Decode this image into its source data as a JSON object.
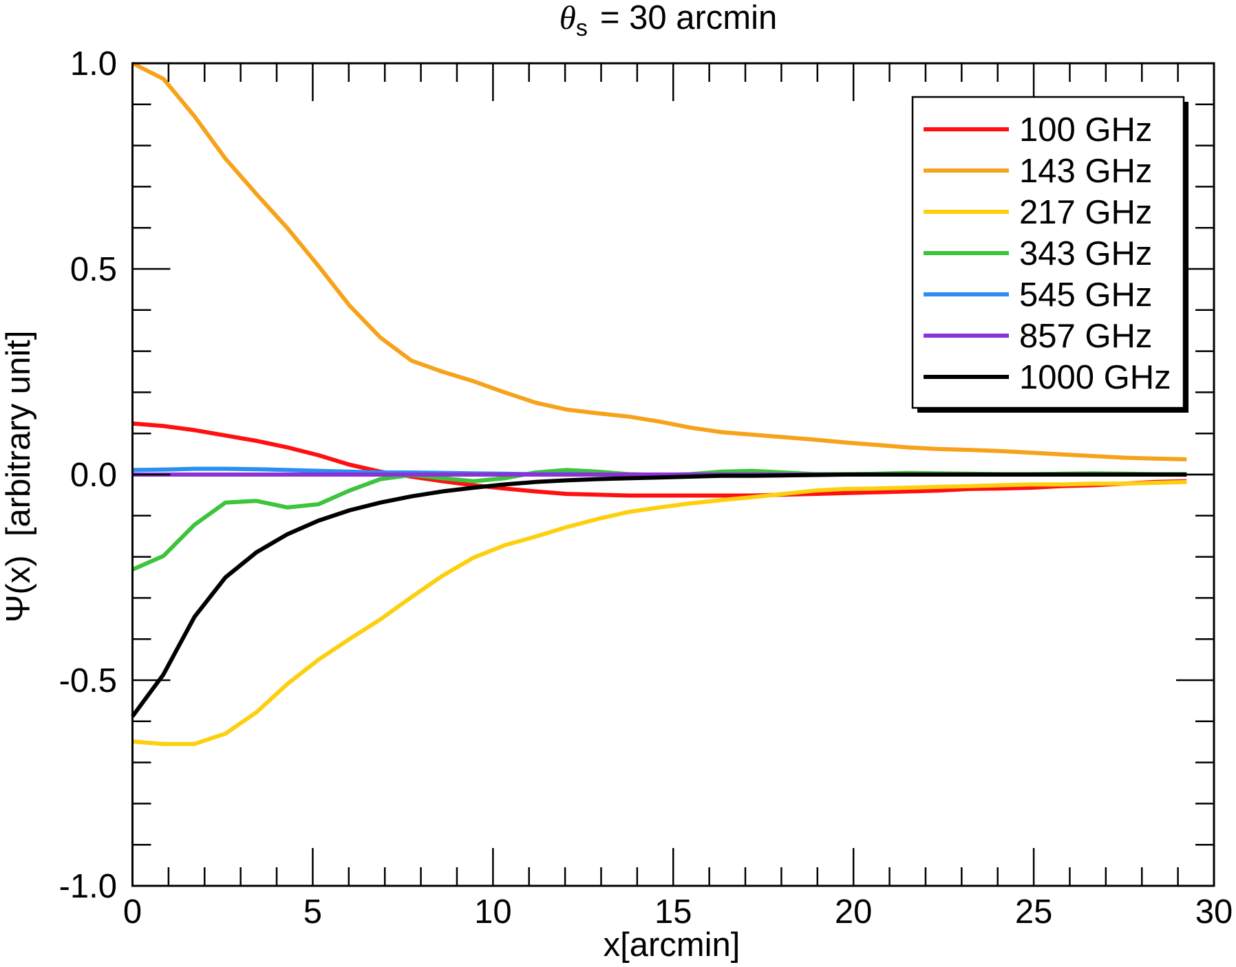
{
  "chart_data": {
    "type": "line",
    "title": {
      "symbol": "θ",
      "subscript": "s",
      "rest": "= 30 arcmin"
    },
    "xlabel": "x[arcmin]",
    "ylabel": "Ψ(x)  [arbitrary unit]",
    "xlim": [
      0,
      30
    ],
    "ylim": [
      -1.0,
      1.0
    ],
    "xticks": [
      0,
      5,
      10,
      15,
      20,
      25,
      30
    ],
    "xtick_labels": [
      "0",
      "5",
      "10",
      "15",
      "20",
      "25",
      "30"
    ],
    "x_minor_step": 1,
    "yticks": [
      1.0,
      0.5,
      0.0,
      -0.5,
      -1.0
    ],
    "ytick_labels": [
      "1.0",
      "0.5",
      "0.0",
      "-0.5",
      "-1.0"
    ],
    "y_minor_step": 0.1,
    "grid": false,
    "zero_line": true,
    "legend_position": "top-right",
    "x": [
      0,
      0.86,
      1.72,
      2.58,
      3.44,
      4.3,
      5.16,
      6.02,
      6.88,
      7.74,
      8.6,
      9.46,
      10.32,
      11.18,
      12.04,
      12.9,
      13.76,
      14.62,
      15.48,
      16.34,
      17.2,
      18.06,
      18.92,
      19.78,
      20.64,
      21.5,
      22.36,
      23.22,
      24.08,
      24.94,
      25.8,
      26.66,
      27.52,
      28.38,
      29.24
    ],
    "series": [
      {
        "name": "100 GHz",
        "color": "#ff1010",
        "values": [
          0.124,
          0.118,
          0.108,
          0.095,
          0.082,
          0.066,
          0.047,
          0.024,
          0.007,
          -0.005,
          -0.016,
          -0.026,
          -0.034,
          -0.041,
          -0.047,
          -0.049,
          -0.051,
          -0.051,
          -0.051,
          -0.051,
          -0.051,
          -0.049,
          -0.047,
          -0.045,
          -0.043,
          -0.041,
          -0.039,
          -0.035,
          -0.034,
          -0.032,
          -0.028,
          -0.026,
          -0.022,
          -0.018,
          -0.016
        ]
      },
      {
        "name": "143 GHz",
        "color": "#f7a21b",
        "values": [
          1.0,
          0.962,
          0.871,
          0.768,
          0.682,
          0.599,
          0.507,
          0.411,
          0.333,
          0.277,
          0.25,
          0.227,
          0.2,
          0.175,
          0.158,
          0.149,
          0.141,
          0.129,
          0.114,
          0.103,
          0.097,
          0.091,
          0.085,
          0.078,
          0.072,
          0.066,
          0.062,
          0.06,
          0.057,
          0.053,
          0.049,
          0.045,
          0.041,
          0.039,
          0.037
        ]
      },
      {
        "name": "217 GHz",
        "color": "#fdd00f",
        "values": [
          -0.649,
          -0.655,
          -0.655,
          -0.63,
          -0.578,
          -0.509,
          -0.45,
          -0.4,
          -0.352,
          -0.298,
          -0.246,
          -0.202,
          -0.172,
          -0.151,
          -0.128,
          -0.108,
          -0.091,
          -0.08,
          -0.07,
          -0.062,
          -0.055,
          -0.047,
          -0.039,
          -0.035,
          -0.034,
          -0.032,
          -0.03,
          -0.028,
          -0.026,
          -0.024,
          -0.024,
          -0.022,
          -0.022,
          -0.02,
          -0.018
        ]
      },
      {
        "name": "343 GHz",
        "color": "#3cc43c",
        "values": [
          -0.231,
          -0.198,
          -0.122,
          -0.068,
          -0.064,
          -0.08,
          -0.072,
          -0.039,
          -0.011,
          -0.001,
          -0.009,
          -0.016,
          -0.009,
          0.005,
          0.011,
          0.007,
          0.001,
          -0.001,
          0.001,
          0.007,
          0.009,
          0.005,
          0.001,
          0.001,
          0.002,
          0.004,
          0.003,
          0.002,
          0.001,
          0.001,
          0.002,
          0.003,
          0.002,
          0.001,
          0.001
        ]
      },
      {
        "name": "545 GHz",
        "color": "#2a8ef2",
        "values": [
          0.011,
          0.012,
          0.014,
          0.014,
          0.013,
          0.011,
          0.009,
          0.007,
          0.005,
          0.005,
          0.004,
          0.003,
          0.002,
          0.001,
          0.001,
          0,
          0,
          0,
          0,
          0,
          0,
          0,
          0,
          0,
          0,
          0,
          0,
          0,
          0,
          0,
          0,
          0,
          0,
          0,
          0
        ]
      },
      {
        "name": "857 GHz",
        "color": "#8b31d6",
        "values": [
          0,
          0,
          0,
          0,
          0,
          0,
          0,
          0,
          0,
          0,
          0,
          0,
          0,
          0,
          0,
          0,
          0,
          0,
          0,
          0,
          0,
          0,
          0,
          0,
          0,
          0,
          0,
          0,
          0,
          0,
          0,
          0,
          0,
          0,
          0
        ]
      },
      {
        "name": "1000 GHz",
        "color": "#000000",
        "values": [
          -0.588,
          -0.486,
          -0.346,
          -0.25,
          -0.189,
          -0.145,
          -0.112,
          -0.087,
          -0.068,
          -0.053,
          -0.041,
          -0.032,
          -0.024,
          -0.018,
          -0.014,
          -0.011,
          -0.009,
          -0.007,
          -0.005,
          -0.003,
          -0.003,
          -0.002,
          -0.001,
          0,
          0,
          0,
          0,
          0,
          0,
          0,
          0,
          0,
          0,
          0,
          0
        ]
      }
    ]
  }
}
